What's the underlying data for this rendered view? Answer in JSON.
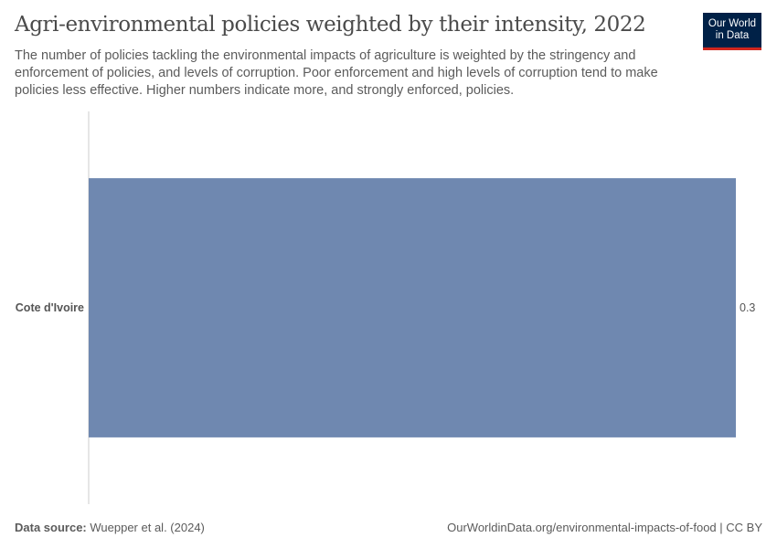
{
  "header": {
    "title": "Agri-environmental policies weighted by their intensity, 2022",
    "subtitle": "The number of policies tackling the environmental impacts of agriculture is weighted by the stringency and enforcement of policies, and levels of corruption. Poor enforcement and high levels of corruption tend to make policies less effective. Higher numbers indicate more, and strongly enforced, policies.",
    "logo_text": "Our World in Data"
  },
  "footer": {
    "source_label": "Data source:",
    "source": "Wuepper et al. (2024)",
    "url": "OurWorldinData.org/environmental-impacts-of-food | CC BY"
  },
  "chart_data": {
    "type": "bar",
    "orientation": "horizontal",
    "categories": [
      "Cote d'Ivoire"
    ],
    "values": [
      0.3
    ],
    "value_labels": [
      "0.3"
    ],
    "xlim": [
      0,
      0.3
    ],
    "grid": false,
    "bar_color": "#6f88b0",
    "title": "Agri-environmental policies weighted by their intensity, 2022"
  }
}
